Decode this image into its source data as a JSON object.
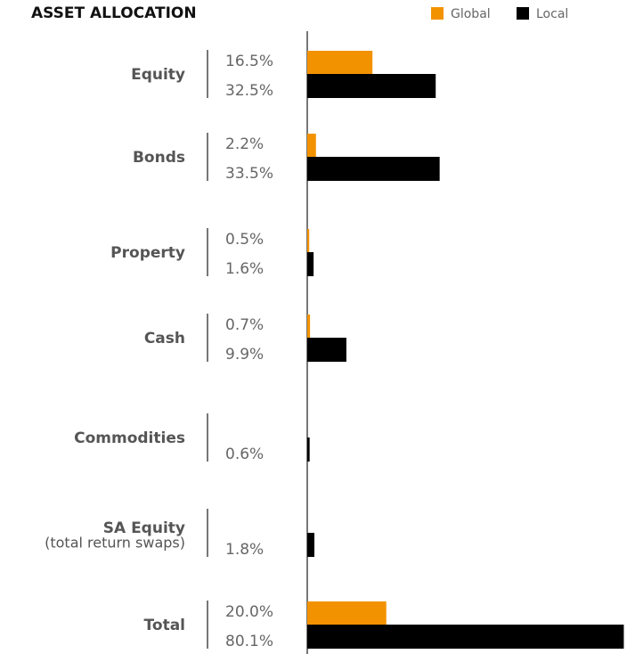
{
  "chart_data": {
    "type": "bar",
    "orientation": "horizontal",
    "title": "ASSET ALLOCATION",
    "categories": [
      "Equity",
      "Bonds",
      "Property",
      "Cash",
      "Commodities",
      "SA Equity",
      "Total"
    ],
    "category_sublabels": [
      null,
      null,
      null,
      null,
      null,
      "(total return swaps)",
      null
    ],
    "series": [
      {
        "name": "Global",
        "color": "#f39200",
        "values": [
          16.5,
          2.2,
          0.5,
          0.7,
          null,
          null,
          20.0
        ],
        "value_labels": [
          "16.5%",
          "2.2%",
          "0.5%",
          "0.7%",
          null,
          null,
          "20.0%"
        ]
      },
      {
        "name": "Local",
        "color": "#000000",
        "values": [
          32.5,
          33.5,
          1.6,
          9.9,
          0.6,
          1.8,
          80.1
        ],
        "value_labels": [
          "32.5%",
          "33.5%",
          "1.6%",
          "9.9%",
          "0.6%",
          "1.8%",
          "80.1%"
        ]
      }
    ],
    "xlim": [
      0,
      80
    ],
    "legend": "top-right"
  }
}
